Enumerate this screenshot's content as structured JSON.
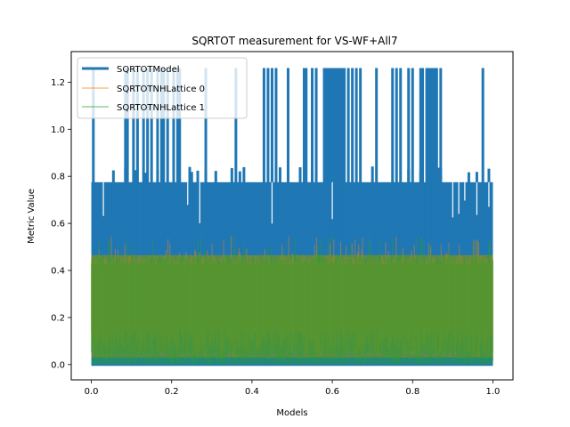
{
  "chart_data": {
    "type": "line",
    "title": "SQRTOT measurement for VS-WF+All7",
    "xlabel": "Models",
    "ylabel": "Metric Value",
    "xlim": [
      -0.05,
      1.05
    ],
    "ylim": [
      -0.065,
      1.33
    ],
    "xticks": [
      0.0,
      0.2,
      0.4,
      0.6,
      0.8,
      1.0
    ],
    "xtick_labels": [
      "0.0",
      "0.2",
      "0.4",
      "0.6",
      "0.8",
      "1.0"
    ],
    "yticks": [
      0.0,
      0.2,
      0.4,
      0.6,
      0.8,
      1.0,
      1.2
    ],
    "ytick_labels": [
      "0.0",
      "0.2",
      "0.4",
      "0.6",
      "0.8",
      "1.0",
      "1.2"
    ],
    "grid": false,
    "legend_position": "top-left",
    "series": [
      {
        "name": "SQRTOTModel",
        "color": "#1f77b4",
        "style": "thick",
        "description_levels": [
          0.0,
          0.02,
          0.065,
          0.51,
          0.77,
          1.26
        ],
        "low_band": [
          0.0,
          0.08
        ],
        "main_band": [
          0.0,
          0.775
        ],
        "spike_value": 1.26,
        "spike_x": [
          0.005,
          0.085,
          0.09,
          0.105,
          0.115,
          0.13,
          0.14,
          0.15,
          0.165,
          0.175,
          0.18,
          0.19,
          0.205,
          0.215,
          0.22,
          0.285,
          0.36,
          0.43,
          0.44,
          0.45,
          0.46,
          0.49,
          0.53,
          0.535,
          0.55,
          0.56,
          0.58,
          0.585,
          0.59,
          0.595,
          0.6,
          0.605,
          0.61,
          0.615,
          0.62,
          0.625,
          0.63,
          0.64,
          0.65,
          0.66,
          0.67,
          0.71,
          0.75,
          0.76,
          0.77,
          0.79,
          0.8,
          0.82,
          0.825,
          0.835,
          0.84,
          0.845,
          0.85,
          0.855,
          0.86,
          0.87,
          0.975
        ],
        "mid_spike_value": 0.845,
        "mid_spike_x": [
          0.055,
          0.085,
          0.11,
          0.135,
          0.165,
          0.175,
          0.245,
          0.25,
          0.265,
          0.285,
          0.31,
          0.35,
          0.37,
          0.38,
          0.45,
          0.47,
          0.52,
          0.55,
          0.6,
          0.62,
          0.7,
          0.79,
          0.82,
          0.855,
          0.865,
          0.87,
          0.94,
          0.96,
          0.99
        ],
        "dip_x": [
          0.03,
          0.24,
          0.27,
          0.45,
          0.6,
          0.9,
          0.915,
          0.93,
          0.96,
          0.99
        ]
      },
      {
        "name": "SQRTOTNHLattice 0",
        "color": "#ff7f0e",
        "alpha": 0.5,
        "band": [
          0.03,
          0.465
        ],
        "peak_value": 0.55
      },
      {
        "name": "SQRTOTNHLattice 1",
        "color": "#2ca02c",
        "alpha": 0.5,
        "band": [
          0.0,
          0.465
        ],
        "peak_value": 0.55
      }
    ]
  }
}
